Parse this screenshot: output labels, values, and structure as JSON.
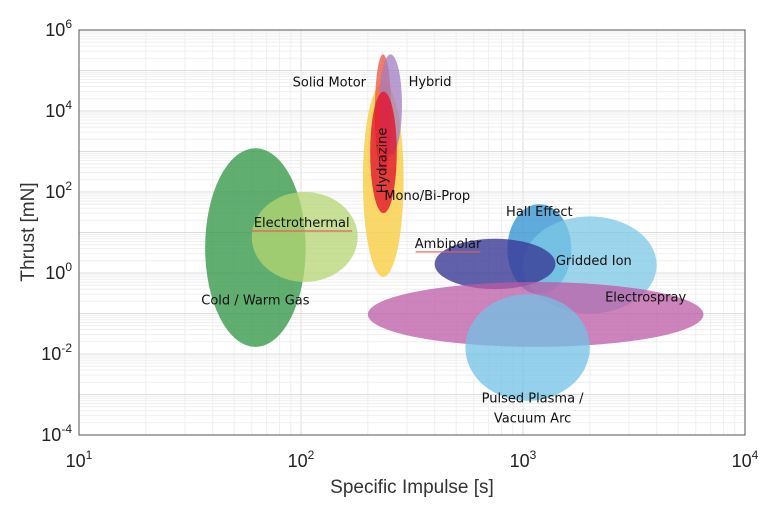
{
  "chart_data": {
    "type": "scatter",
    "title": "",
    "xlabel": "Specific Impulse [s]",
    "ylabel": "Thrust [mN]",
    "x_scale": "log",
    "y_scale": "log",
    "xlim": [
      10,
      10000
    ],
    "ylim": [
      0.0001,
      1000000
    ],
    "x_ticks": [
      {
        "base": "10",
        "exp": "1"
      },
      {
        "base": "10",
        "exp": "2"
      },
      {
        "base": "10",
        "exp": "3"
      },
      {
        "base": "10",
        "exp": "4"
      }
    ],
    "y_ticks": [
      {
        "base": "10",
        "exp": "-4"
      },
      {
        "base": "10",
        "exp": "-2"
      },
      {
        "base": "10",
        "exp": "0"
      },
      {
        "base": "10",
        "exp": "2"
      },
      {
        "base": "10",
        "exp": "4"
      },
      {
        "base": "10",
        "exp": "6"
      }
    ],
    "grid": true,
    "series": [
      {
        "label": "Cold / Warm Gas",
        "isp_range": [
          37,
          105
        ],
        "thrust_range": [
          0.015,
          1200
        ],
        "color": "#3a9a4e",
        "opacity": 0.8
      },
      {
        "label": "Electrothermal",
        "isp_range": [
          60,
          180
        ],
        "thrust_range": [
          0.6,
          100
        ],
        "color": "#b5d672",
        "opacity": 0.75
      },
      {
        "label": "Mono/Bi-Prop",
        "isp_range": [
          190,
          290
        ],
        "thrust_range": [
          0.8,
          50000
        ],
        "color": "#f8d04e",
        "opacity": 0.85
      },
      {
        "label": "Solid Motor",
        "isp_range": [
          215,
          255
        ],
        "thrust_range": [
          300,
          250000
        ],
        "color": "#ef5b44",
        "opacity": 0.8
      },
      {
        "label": "Hybrid",
        "isp_range": [
          225,
          285
        ],
        "thrust_range": [
          800,
          250000
        ],
        "color": "#a37cc0",
        "opacity": 0.75
      },
      {
        "label": "Hydrazine",
        "isp_range": [
          205,
          270
        ],
        "thrust_range": [
          30,
          30000
        ],
        "color": "#e1152e",
        "opacity": 0.8
      },
      {
        "label": "Hall Effect",
        "isp_range": [
          850,
          1650
        ],
        "thrust_range": [
          0.3,
          50
        ],
        "color": "#3796d3",
        "opacity": 0.8
      },
      {
        "label": "Gridded Ion",
        "isp_range": [
          1000,
          4000
        ],
        "thrust_range": [
          0.1,
          25
        ],
        "color": "#7cc8e5",
        "opacity": 0.75
      },
      {
        "label": "Ambipolar",
        "isp_range": [
          400,
          1400
        ],
        "thrust_range": [
          0.4,
          7
        ],
        "color": "#3a3a96",
        "opacity": 0.8
      },
      {
        "label": "Electrospray",
        "isp_range": [
          200,
          6500
        ],
        "thrust_range": [
          0.015,
          0.6
        ],
        "color": "#bc5aa4",
        "opacity": 0.75
      },
      {
        "label": "Pulsed Plasma / Vacuum Arc",
        "isp_range": [
          550,
          2000
        ],
        "thrust_range": [
          0.0007,
          0.3
        ],
        "color": "#72c2e6",
        "opacity": 0.75
      }
    ]
  }
}
